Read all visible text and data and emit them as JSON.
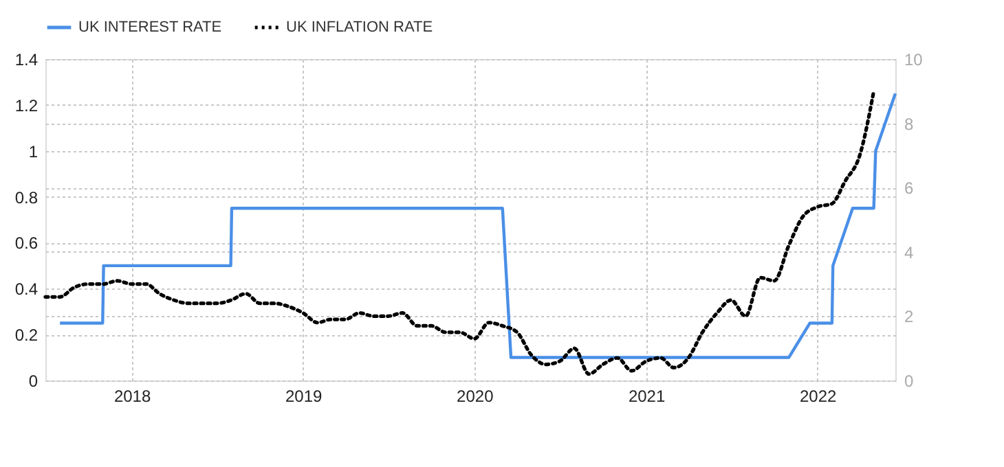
{
  "chart_data": {
    "type": "line",
    "xlim": [
      "2017-07-01",
      "2022-06-16"
    ],
    "xticks": [
      "2018",
      "2019",
      "2020",
      "2021",
      "2022"
    ],
    "ylim": [
      0,
      1.4
    ],
    "yticks": [
      0,
      0.2,
      0.4,
      0.6,
      0.8,
      1,
      1.2,
      1.4
    ],
    "y2lim": [
      0,
      10
    ],
    "y2ticks": [
      0,
      2,
      4,
      6,
      8,
      10
    ],
    "grid": true,
    "legend": "top left",
    "marker": "none",
    "series": [
      {
        "name": "UK INTEREST RATE",
        "color": "#4a8fe7",
        "line_style": "solid",
        "x": [
          "2017-08-01",
          "2017-10-31",
          "2017-11-02",
          "2018-07-31",
          "2018-08-02",
          "2020-03-01",
          "2020-03-19",
          "2021-11-01",
          "2021-12-16",
          "2022-02-01",
          "2022-02-03",
          "2022-03-17",
          "2022-05-01",
          "2022-05-05",
          "2022-06-16"
        ],
        "values": [
          0.25,
          0.25,
          0.5,
          0.5,
          0.75,
          0.75,
          0.1,
          0.1,
          0.25,
          0.25,
          0.5,
          0.75,
          0.75,
          1,
          1.25
        ]
      },
      {
        "name": "UK INFLATION RATE",
        "color": "#000000",
        "line_style": "dotted",
        "axis": "y2",
        "x": [
          "2017-07",
          "2017-08",
          "2017-09",
          "2017-10",
          "2017-11",
          "2017-12",
          "2018-01",
          "2018-02",
          "2018-03",
          "2018-04",
          "2018-05",
          "2018-06",
          "2018-07",
          "2018-08",
          "2018-09",
          "2018-10",
          "2018-11",
          "2018-12",
          "2019-01",
          "2019-02",
          "2019-03",
          "2019-04",
          "2019-05",
          "2019-06",
          "2019-07",
          "2019-08",
          "2019-09",
          "2019-10",
          "2019-11",
          "2019-12",
          "2020-01",
          "2020-02",
          "2020-03",
          "2020-04",
          "2020-05",
          "2020-06",
          "2020-07",
          "2020-08",
          "2020-09",
          "2020-10",
          "2020-11",
          "2020-12",
          "2021-01",
          "2021-02",
          "2021-03",
          "2021-04",
          "2021-05",
          "2021-06",
          "2021-07",
          "2021-08",
          "2021-09",
          "2021-10",
          "2021-11",
          "2021-12",
          "2022-01",
          "2022-02",
          "2022-03",
          "2022-04",
          "2022-05"
        ],
        "values": [
          2.6,
          2.6,
          2.9,
          3.0,
          3.0,
          3.1,
          3.0,
          3.0,
          2.7,
          2.5,
          2.4,
          2.4,
          2.4,
          2.5,
          2.7,
          2.4,
          2.4,
          2.3,
          2.1,
          1.8,
          1.9,
          1.9,
          2.1,
          2.0,
          2.0,
          2.1,
          1.7,
          1.7,
          1.5,
          1.5,
          1.3,
          1.8,
          1.7,
          1.5,
          0.8,
          0.5,
          0.6,
          1.0,
          0.2,
          0.5,
          0.7,
          0.3,
          0.6,
          0.7,
          0.4,
          0.7,
          1.5,
          2.1,
          2.5,
          2.0,
          3.2,
          3.1,
          4.2,
          5.1,
          5.4,
          5.5,
          6.2,
          7.0,
          9.0
        ]
      }
    ]
  }
}
